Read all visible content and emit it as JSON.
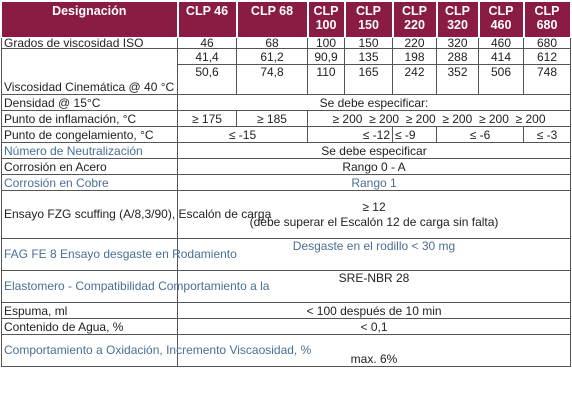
{
  "header": {
    "designation": "Designación",
    "grades": [
      "CLP 46",
      "CLP 68",
      "CLP 100",
      "CLP 150",
      "CLP 220",
      "CLP 320",
      "CLP 460",
      "CLP 680"
    ]
  },
  "rows": {
    "iso_label": "Grados de viscosidad ISO",
    "iso_values": [
      "46",
      "68",
      "100",
      "150",
      "220",
      "320",
      "460",
      "680"
    ],
    "visc_label": "Viscosidad Cinemática @ 40 °C",
    "visc_row1": [
      "41,4",
      "61,2",
      "90,9",
      "135",
      "198",
      "288",
      "414",
      "612"
    ],
    "visc_row2": [
      "50,6",
      "74,8",
      "110",
      "165",
      "242",
      "352",
      "506",
      "748"
    ],
    "density_label": "Densidad @ 15°C",
    "density_value": "Se debe especificar:",
    "flash_label": "Punto de inflamación, °C",
    "flash_a": "≥ 175",
    "flash_b": "≥ 185",
    "flash_rest": "≥ 200  ≥ 200  ≥ 200  ≥ 200  ≥ 200  ≥ 200",
    "pour_label": "Punto de congelamiento, °C",
    "pour_a": "≤ -15",
    "pour_b": "≤ -12",
    "pour_c": "≤ -9",
    "pour_d": "≤ -6",
    "pour_e": "≤ -3",
    "neut_label": "Número de Neutralización",
    "neut_value": "Se debe especificar",
    "steel_label": "Corrosión en Acero",
    "steel_value": "Rango 0 - A",
    "copper_label": "Corrosión en Cobre",
    "copper_value": "Rango 1",
    "fzg_label": "Ensayo FZG scuffing (A/8,3/90), Escalón de carga",
    "fzg_value1": "≥ 12",
    "fzg_value2": "(debe superar el Escalón 12 de carga sin falta)",
    "fag_label": "FAG FE 8 Ensayo desgaste en Rodamiento",
    "fag_value": "Desgaste en el rodillo < 30 mg",
    "elast_label": "Elastomero - Compatibilidad Comportamiento a la",
    "elast_value": "SRE-NBR 28",
    "foam_label": "Espuma, ml",
    "foam_value": "< 100 después de 10 min",
    "water_label": "Contenido de Agua, %",
    "water_value": "< 0,1",
    "oxid_label": "Comportamiento a Oxidación, Incremento Viscaosidad, %",
    "oxid_value": "max. 6%"
  },
  "colors": {
    "header_bg": "#8a1b45",
    "header_text": "#ffffff",
    "blue_label": "#4a6f95"
  }
}
